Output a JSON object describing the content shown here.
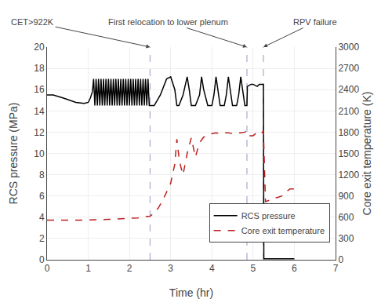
{
  "chart_data": {
    "type": "line",
    "x_label": "Time (hr)",
    "y_label": "RCS pressure (MPa)",
    "y2_label": "Core exit temperature (K)",
    "xlim": [
      0,
      7
    ],
    "ylim": [
      0,
      20
    ],
    "y2lim": [
      0,
      3000
    ],
    "xticks": [
      0,
      1,
      2,
      3,
      4,
      5,
      6,
      7
    ],
    "yticks": [
      0,
      2,
      4,
      6,
      8,
      10,
      12,
      14,
      16,
      18,
      20
    ],
    "y2ticks": [
      0,
      300,
      600,
      900,
      1200,
      1500,
      1800,
      2100,
      2400,
      2700,
      3000
    ],
    "grid": true,
    "legend": "lower right",
    "annotations": [
      {
        "text": "CET>922K",
        "x": 2.5,
        "color": "#aaaacc"
      },
      {
        "text": "First relocation to lower plenum",
        "x": 4.85,
        "color": "#aaaacc"
      },
      {
        "text": "RPV failure",
        "x": 5.25,
        "color": "#aaaacc"
      }
    ],
    "series": [
      {
        "name": "RCS pressure",
        "color": "#000000",
        "line_style": "solid",
        "axis": "y",
        "x": [
          0.0,
          0.15,
          0.4,
          0.7,
          0.9,
          1.0,
          1.05,
          1.1,
          1.13,
          1.16,
          1.19,
          1.22,
          1.25,
          1.28,
          1.31,
          1.34,
          1.37,
          1.4,
          1.43,
          1.46,
          1.49,
          1.52,
          1.55,
          1.58,
          1.61,
          1.64,
          1.67,
          1.7,
          1.73,
          1.76,
          1.79,
          1.82,
          1.85,
          1.88,
          1.91,
          1.94,
          1.97,
          2.0,
          2.03,
          2.06,
          2.09,
          2.12,
          2.15,
          2.18,
          2.21,
          2.24,
          2.27,
          2.3,
          2.33,
          2.36,
          2.39,
          2.42,
          2.45,
          2.48,
          2.5,
          2.52,
          2.6,
          2.75,
          2.9,
          3.0,
          3.1,
          3.15,
          3.2,
          3.3,
          3.4,
          3.45,
          3.5,
          3.6,
          3.7,
          3.75,
          3.8,
          3.9,
          4.0,
          4.05,
          4.1,
          4.2,
          4.3,
          4.35,
          4.4,
          4.5,
          4.6,
          4.65,
          4.7,
          4.8,
          4.84,
          4.85,
          4.86,
          4.9,
          4.95,
          5.0,
          5.05,
          5.1,
          5.15,
          5.2,
          5.25,
          5.26,
          5.3,
          5.4,
          5.5,
          5.6,
          5.7,
          5.8,
          5.9,
          6.0
        ],
        "values": [
          15.5,
          15.5,
          15.2,
          14.8,
          14.7,
          14.8,
          15.2,
          15.8,
          17.0,
          14.5,
          17.0,
          14.5,
          17.0,
          14.5,
          17.0,
          14.5,
          17.0,
          14.5,
          17.0,
          14.5,
          17.0,
          14.5,
          17.0,
          14.5,
          17.0,
          14.5,
          17.0,
          14.5,
          17.0,
          14.5,
          17.0,
          14.5,
          17.0,
          14.5,
          17.0,
          14.5,
          17.0,
          14.5,
          17.0,
          14.5,
          17.0,
          14.5,
          17.0,
          14.5,
          17.0,
          14.5,
          17.0,
          14.5,
          17.0,
          14.5,
          17.0,
          14.5,
          17.0,
          14.5,
          14.5,
          14.5,
          14.5,
          15.5,
          17.0,
          17.2,
          16.0,
          14.5,
          14.5,
          15.5,
          17.2,
          16.0,
          14.5,
          14.5,
          15.5,
          17.2,
          16.0,
          14.5,
          14.5,
          15.5,
          17.2,
          14.5,
          14.5,
          15.5,
          17.2,
          14.5,
          14.5,
          15.5,
          17.2,
          14.5,
          14.5,
          14.5,
          16.3,
          16.4,
          16.5,
          16.5,
          16.4,
          16.3,
          16.5,
          16.5,
          16.5,
          0.1,
          0.1,
          0.1,
          0.1,
          0.1,
          0.1,
          0.1,
          0.1,
          0.1
        ]
      },
      {
        "name": "Core exit temperature",
        "color": "#bb2222",
        "line_style": "dashed",
        "axis": "y2",
        "x": [
          0.0,
          0.5,
          1.0,
          1.5,
          2.0,
          2.2,
          2.4,
          2.5,
          2.6,
          2.7,
          2.8,
          2.9,
          3.0,
          3.1,
          3.15,
          3.2,
          3.25,
          3.3,
          3.4,
          3.5,
          3.55,
          3.6,
          3.7,
          3.8,
          3.9,
          4.0,
          4.1,
          4.2,
          4.3,
          4.4,
          4.5,
          4.6,
          4.7,
          4.8,
          4.85,
          4.9,
          5.0,
          5.1,
          5.2,
          5.25,
          5.3,
          5.4,
          5.5,
          5.6,
          5.7,
          5.8,
          5.9,
          6.0
        ],
        "values": [
          560,
          560,
          560,
          570,
          580,
          590,
          610,
          615,
          660,
          730,
          830,
          950,
          1080,
          1350,
          1700,
          1450,
          1300,
          1200,
          1500,
          1720,
          1600,
          1450,
          1650,
          1730,
          1750,
          1780,
          1790,
          1780,
          1790,
          1790,
          1780,
          1790,
          1790,
          1800,
          1820,
          1750,
          1750,
          1800,
          1780,
          1820,
          820,
          840,
          870,
          880,
          900,
          960,
          1000,
          1000
        ]
      }
    ]
  }
}
